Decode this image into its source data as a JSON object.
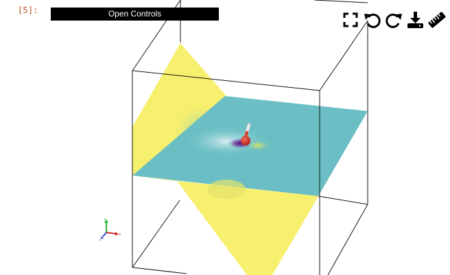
{
  "cell": {
    "prompt": "[5]:"
  },
  "controls": {
    "button_label": "Open Controls"
  },
  "toolbar": {
    "icons": [
      "fullscreen-icon",
      "undo-icon",
      "redo-icon",
      "download-icon",
      "ruler-icon"
    ]
  },
  "axes_widget": {
    "labels": [
      "b",
      "a",
      "c"
    ]
  },
  "colors": {
    "yellow_plane": "#f7ef6e",
    "teal_plane": "#6bbfc4",
    "atom_red": "#d33a2c",
    "atom_white": "#f2f2f2",
    "orbital_purple": "#5b1a8c",
    "prompt_orange": "#c14b1b"
  }
}
